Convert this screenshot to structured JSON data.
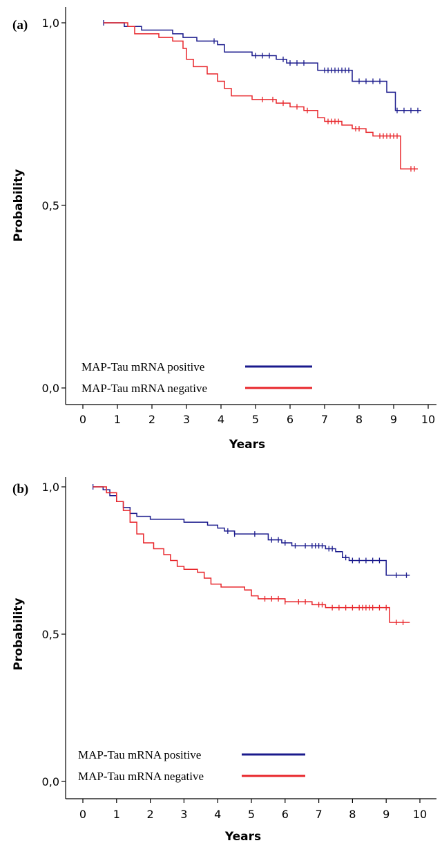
{
  "chart_data": [
    {
      "panel_label": "(a)",
      "type": "line",
      "step": true,
      "xlabel": "Years",
      "ylabel": "Probability",
      "xlim": [
        0,
        10
      ],
      "ylim": [
        0,
        1
      ],
      "x_ticks": [
        "0",
        "1",
        "2",
        "3",
        "4",
        "5",
        "6",
        "7",
        "8",
        "9",
        "10"
      ],
      "y_ticks": [
        "0,0",
        "0,5",
        "1,0"
      ],
      "legend_position": "bottom-left",
      "series": [
        {
          "name": "MAP-Tau mRNA positive",
          "color": "#1a1a8c",
          "steps": [
            [
              0.6,
              1.0
            ],
            [
              1.2,
              0.99
            ],
            [
              1.7,
              0.98
            ],
            [
              2.6,
              0.97
            ],
            [
              2.9,
              0.96
            ],
            [
              3.3,
              0.95
            ],
            [
              3.9,
              0.94
            ],
            [
              4.1,
              0.92
            ],
            [
              4.9,
              0.91
            ],
            [
              5.6,
              0.9
            ],
            [
              5.9,
              0.89
            ],
            [
              6.8,
              0.87
            ],
            [
              7.8,
              0.84
            ],
            [
              8.8,
              0.81
            ],
            [
              9.05,
              0.76
            ],
            [
              9.8,
              0.76
            ]
          ],
          "censored": [
            0.6,
            3.8,
            5.0,
            5.2,
            5.4,
            5.8,
            6.0,
            6.2,
            6.4,
            7.0,
            7.1,
            7.2,
            7.3,
            7.4,
            7.5,
            7.6,
            7.7,
            8.0,
            8.2,
            8.4,
            8.6,
            9.1,
            9.3,
            9.5,
            9.7
          ]
        },
        {
          "name": "MAP-Tau mRNA negative",
          "color": "#e8262b",
          "steps": [
            [
              0.6,
              1.0
            ],
            [
              1.3,
              0.99
            ],
            [
              1.5,
              0.97
            ],
            [
              2.2,
              0.96
            ],
            [
              2.6,
              0.95
            ],
            [
              2.9,
              0.93
            ],
            [
              3.0,
              0.9
            ],
            [
              3.2,
              0.88
            ],
            [
              3.6,
              0.86
            ],
            [
              3.9,
              0.84
            ],
            [
              4.1,
              0.82
            ],
            [
              4.3,
              0.8
            ],
            [
              4.9,
              0.79
            ],
            [
              5.6,
              0.78
            ],
            [
              6.0,
              0.77
            ],
            [
              6.4,
              0.76
            ],
            [
              6.8,
              0.74
            ],
            [
              7.0,
              0.73
            ],
            [
              7.5,
              0.72
            ],
            [
              7.8,
              0.71
            ],
            [
              8.2,
              0.7
            ],
            [
              8.4,
              0.69
            ],
            [
              9.2,
              0.6
            ],
            [
              9.7,
              0.6
            ]
          ],
          "censored": [
            5.2,
            5.5,
            5.8,
            6.2,
            6.5,
            7.1,
            7.2,
            7.3,
            7.4,
            7.9,
            8.0,
            8.6,
            8.7,
            8.8,
            8.9,
            9.0,
            9.1,
            9.5,
            9.6
          ]
        }
      ]
    },
    {
      "panel_label": "(b)",
      "type": "line",
      "step": true,
      "xlabel": "Years",
      "ylabel": "Probability",
      "xlim": [
        0,
        10
      ],
      "ylim": [
        0,
        1
      ],
      "x_ticks": [
        "0",
        "1",
        "2",
        "3",
        "4",
        "5",
        "6",
        "7",
        "8",
        "9",
        "10"
      ],
      "y_ticks": [
        "0,0",
        "0,5",
        "1,0"
      ],
      "legend_position": "bottom-left",
      "series": [
        {
          "name": "MAP-Tau mRNA positive",
          "color": "#1a1a8c",
          "steps": [
            [
              0.3,
              1.0
            ],
            [
              0.6,
              0.99
            ],
            [
              0.8,
              0.97
            ],
            [
              1.0,
              0.95
            ],
            [
              1.2,
              0.93
            ],
            [
              1.4,
              0.91
            ],
            [
              1.6,
              0.9
            ],
            [
              2.0,
              0.89
            ],
            [
              3.0,
              0.88
            ],
            [
              3.7,
              0.87
            ],
            [
              4.0,
              0.86
            ],
            [
              4.2,
              0.85
            ],
            [
              4.5,
              0.84
            ],
            [
              5.5,
              0.82
            ],
            [
              5.9,
              0.81
            ],
            [
              6.2,
              0.8
            ],
            [
              7.2,
              0.79
            ],
            [
              7.5,
              0.78
            ],
            [
              7.7,
              0.76
            ],
            [
              7.9,
              0.75
            ],
            [
              9.0,
              0.7
            ],
            [
              9.7,
              0.7
            ]
          ],
          "censored": [
            0.3,
            4.3,
            4.5,
            5.1,
            5.6,
            5.8,
            6.0,
            6.3,
            6.6,
            6.8,
            6.9,
            7.0,
            7.1,
            7.3,
            7.4,
            7.8,
            8.0,
            8.2,
            8.4,
            8.6,
            8.8,
            9.3,
            9.6
          ]
        },
        {
          "name": "MAP-Tau mRNA negative",
          "color": "#e8262b",
          "steps": [
            [
              0.3,
              1.0
            ],
            [
              0.7,
              0.98
            ],
            [
              1.0,
              0.95
            ],
            [
              1.2,
              0.92
            ],
            [
              1.4,
              0.88
            ],
            [
              1.6,
              0.84
            ],
            [
              1.8,
              0.81
            ],
            [
              2.1,
              0.79
            ],
            [
              2.4,
              0.77
            ],
            [
              2.6,
              0.75
            ],
            [
              2.8,
              0.73
            ],
            [
              3.0,
              0.72
            ],
            [
              3.4,
              0.71
            ],
            [
              3.6,
              0.69
            ],
            [
              3.8,
              0.67
            ],
            [
              4.1,
              0.66
            ],
            [
              4.8,
              0.65
            ],
            [
              5.0,
              0.63
            ],
            [
              5.2,
              0.62
            ],
            [
              6.0,
              0.61
            ],
            [
              6.8,
              0.6
            ],
            [
              7.2,
              0.59
            ],
            [
              9.1,
              0.54
            ],
            [
              9.7,
              0.54
            ]
          ],
          "censored": [
            5.4,
            5.6,
            5.8,
            6.0,
            6.4,
            6.6,
            7.0,
            7.1,
            7.4,
            7.6,
            7.8,
            8.0,
            8.2,
            8.3,
            8.4,
            8.5,
            8.6,
            8.8,
            9.0,
            9.3,
            9.5
          ]
        }
      ]
    }
  ]
}
